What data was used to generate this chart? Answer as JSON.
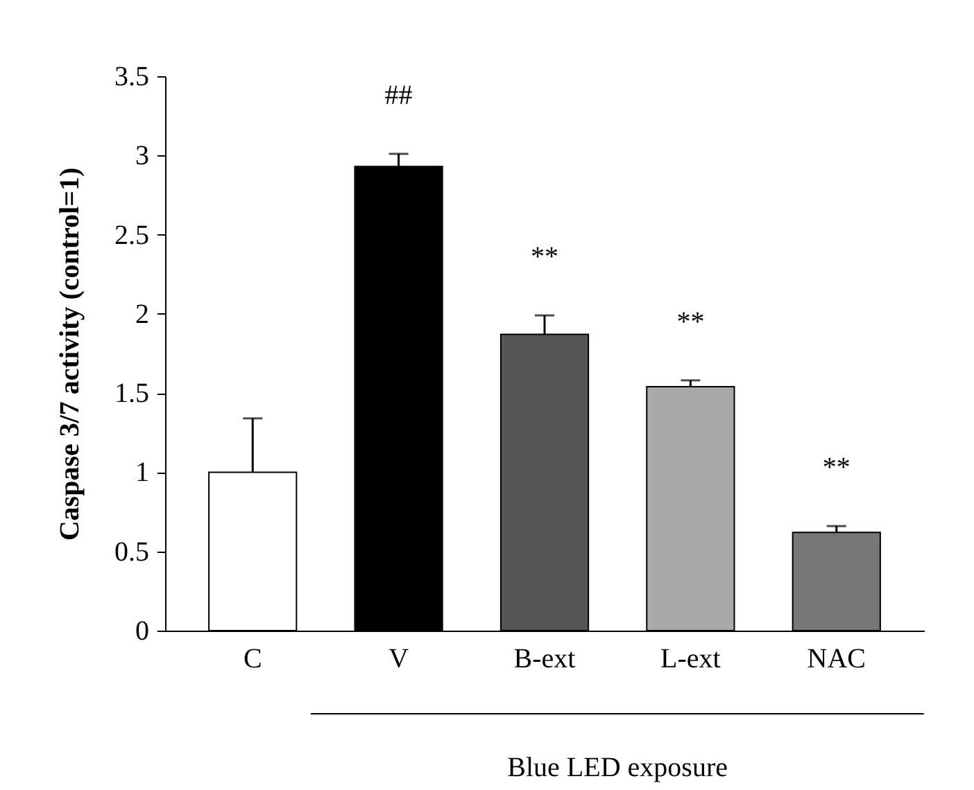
{
  "chart_data": {
    "type": "bar",
    "ylabel": "Caspase 3/7 activity (control=1)",
    "categories": [
      "C",
      "V",
      "B-ext",
      "L-ext",
      "NAC"
    ],
    "values": [
      1.0,
      2.93,
      1.87,
      1.54,
      0.62
    ],
    "colors": [
      "#ffffff",
      "#000000",
      "#555555",
      "#aaaaaa",
      "#777777"
    ],
    "errors": [
      [
        1.0,
        1.34
      ],
      [
        2.93,
        3.01
      ],
      [
        1.87,
        1.99
      ],
      [
        1.54,
        1.58
      ],
      [
        0.62,
        0.66
      ]
    ],
    "ylim": [
      0,
      3.5
    ],
    "yticks": [
      0,
      0.5,
      1,
      1.5,
      2,
      2.5,
      3,
      3.5
    ],
    "grid": false,
    "annotations": [
      {
        "text": "##",
        "x": "V",
        "y": 2.93
      },
      {
        "text": "**",
        "x": "B-ext",
        "y": 1.87
      },
      {
        "text": "**",
        "x": "L-ext",
        "y": 1.54
      },
      {
        "text": "**",
        "x": "NAC",
        "y": 0.62
      },
      "Blue LED exposure"
    ]
  }
}
